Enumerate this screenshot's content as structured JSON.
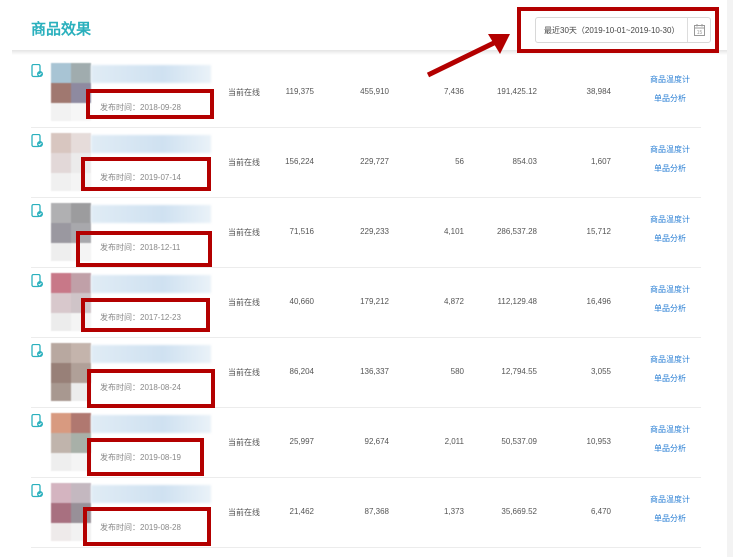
{
  "header": {
    "title": "商品效果",
    "date_range": "最近30天（2019-10-01~2019-10-30）",
    "calendar_day": "15"
  },
  "colors": {
    "accent": "#2ab0bd",
    "link": "#2a7fd4",
    "annotation": "#b30000"
  },
  "rows": [
    {
      "publish_label": "发布时间：2018-09-28",
      "status": "当前在线",
      "v1": "119,375",
      "v2": "455,910",
      "v3": "7,436",
      "v4": "191,425.12",
      "v5": "38,984",
      "link1": "商品温度计",
      "link2": "单品分析",
      "thumb": [
        "#a8c4d4",
        "#a0acae",
        "#a07870",
        "#8e8aa0",
        "#f2f2f2",
        "#f6f6f6"
      ]
    },
    {
      "publish_label": "发布时间：2019-07-14",
      "status": "当前在线",
      "v1": "156,224",
      "v2": "229,727",
      "v3": "56",
      "v4": "854.03",
      "v5": "1,607",
      "link1": "商品温度计",
      "link2": "单品分析",
      "thumb": [
        "#d8c6c0",
        "#e6dcda",
        "#e2d8d8",
        "#ecebeb",
        "#f0f0f0",
        "#f4f4f4"
      ]
    },
    {
      "publish_label": "发布时间：2018-12-11",
      "status": "当前在线",
      "v1": "71,516",
      "v2": "229,233",
      "v3": "4,101",
      "v4": "286,537.28",
      "v5": "15,712",
      "link1": "商品温度计",
      "link2": "单品分析",
      "thumb": [
        "#b0b0b2",
        "#9c9c9e",
        "#9a98a0",
        "#a8a8ac",
        "#eeeeee",
        "#f4f4f4"
      ]
    },
    {
      "publish_label": "发布时间：2017-12-23",
      "status": "当前在线",
      "v1": "40,660",
      "v2": "179,212",
      "v3": "4,872",
      "v4": "112,129.48",
      "v5": "16,496",
      "link1": "商品温度计",
      "link2": "单品分析",
      "thumb": [
        "#c87888",
        "#c0a0a8",
        "#d8c8cc",
        "#cfc4c8",
        "#ececec",
        "#f4f4f4"
      ]
    },
    {
      "publish_label": "发布时间：2018-08-24",
      "status": "当前在线",
      "v1": "86,204",
      "v2": "136,337",
      "v3": "580",
      "v4": "12,794.55",
      "v5": "3,055",
      "link1": "商品温度计",
      "link2": "单品分析",
      "thumb": [
        "#b8a8a0",
        "#c4b4ac",
        "#988078",
        "#b0a098",
        "#a89890",
        "#ececec"
      ]
    },
    {
      "publish_label": "发布时间：2019-08-19",
      "status": "当前在线",
      "v1": "25,997",
      "v2": "92,674",
      "v3": "2,011",
      "v4": "50,537.09",
      "v5": "10,953",
      "link1": "商品温度计",
      "link2": "单品分析",
      "thumb": [
        "#d89a80",
        "#b07870",
        "#c0b4ac",
        "#a8b0a8",
        "#eeeeee",
        "#f4f4f4"
      ]
    },
    {
      "publish_label": "发布时间：2019-08-28",
      "status": "当前在线",
      "v1": "21,462",
      "v2": "87,368",
      "v3": "1,373",
      "v4": "35,669.52",
      "v5": "6,470",
      "link1": "商品温度计",
      "link2": "单品分析",
      "thumb": [
        "#d4b4c0",
        "#c4b8c0",
        "#a87080",
        "#989098",
        "#eeeaea",
        "#f2f2f2"
      ]
    }
  ]
}
